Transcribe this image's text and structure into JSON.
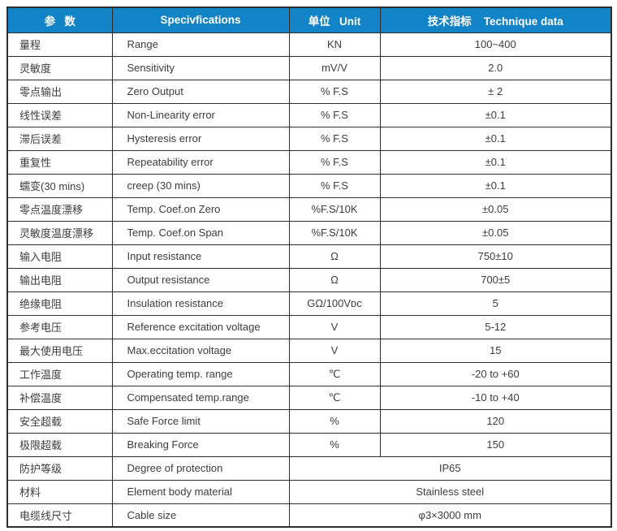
{
  "colors": {
    "header_bg": "#1283c6",
    "header_text": "#ffffff",
    "border": "#2e2e2e",
    "text": "#3d3d3d"
  },
  "table": {
    "headers": {
      "param": "参   数",
      "spec": "Specivfications",
      "unit": "单位   Unit",
      "data": "技术指标    Technique data"
    },
    "rows": [
      {
        "param": "量程",
        "spec": "Range",
        "unit": "KN",
        "value": "100~400",
        "merged": false
      },
      {
        "param": "灵敏度",
        "spec": "Sensitivity",
        "unit": "mV/V",
        "value": "2.0",
        "merged": false
      },
      {
        "param": "零点输出",
        "spec": "Zero Output",
        "unit": "% F.S",
        "value": "± 2",
        "merged": false
      },
      {
        "param": "线性误差",
        "spec": "Non-Linearity error",
        "unit": "% F.S",
        "value": "±0.1",
        "merged": false
      },
      {
        "param": "滞后误差",
        "spec": "Hysteresis error",
        "unit": "% F.S",
        "value": "±0.1",
        "merged": false
      },
      {
        "param": "重复性",
        "spec": "Repeatability error",
        "unit": "% F.S",
        "value": "±0.1",
        "merged": false
      },
      {
        "param": "蠕变(30 mins)",
        "spec": "creep (30 mins)",
        "unit": "% F.S",
        "value": "±0.1",
        "merged": false
      },
      {
        "param": "零点温度漂移",
        "spec": "Temp. Coef.on Zero",
        "unit": "%F.S/10K",
        "value": "±0.05",
        "merged": false
      },
      {
        "param": "灵敏度温度漂移",
        "spec": "Temp. Coef.on Span",
        "unit": "%F.S/10K",
        "value": "±0.05",
        "merged": false
      },
      {
        "param": "输入电阻",
        "spec": "Input resistance",
        "unit": "Ω",
        "value": "750±10",
        "merged": false
      },
      {
        "param": "输出电阻",
        "spec": "Output resistance",
        "unit": "Ω",
        "value": "700±5",
        "merged": false
      },
      {
        "param": "绝缘电阻",
        "spec": "Insulation resistance",
        "unit": "GΩ/100Vᴅᴄ",
        "value": "5",
        "merged": false
      },
      {
        "param": "参考电压",
        "spec": "Reference excitation voltage",
        "unit": "V",
        "value": "5-12",
        "merged": false
      },
      {
        "param": "最大使用电压",
        "spec": "Max.eccitation voltage",
        "unit": "V",
        "value": "15",
        "merged": false
      },
      {
        "param": "工作温度",
        "spec": "Operating temp. range",
        "unit": "℃",
        "value": "-20 to +60",
        "merged": false
      },
      {
        "param": "补偿温度",
        "spec": "Compensated temp.range",
        "unit": "℃",
        "value": "-10 to +40",
        "merged": false
      },
      {
        "param": "安全超载",
        "spec": "Safe Force limit",
        "unit": "%",
        "value": "120",
        "merged": false
      },
      {
        "param": "极限超载",
        "spec": "Breaking Force",
        "unit": "%",
        "value": "150",
        "merged": false
      },
      {
        "param": "防护等级",
        "spec": "Degree of protection",
        "unit": "",
        "value": "IP65",
        "merged": true
      },
      {
        "param": "材料",
        "spec": "Element body material",
        "unit": "",
        "value": "Stainless steel",
        "merged": true
      },
      {
        "param": "电缆线尺寸",
        "spec": "Cable size",
        "unit": "",
        "value": "φ3×3000 mm",
        "merged": true
      }
    ]
  }
}
